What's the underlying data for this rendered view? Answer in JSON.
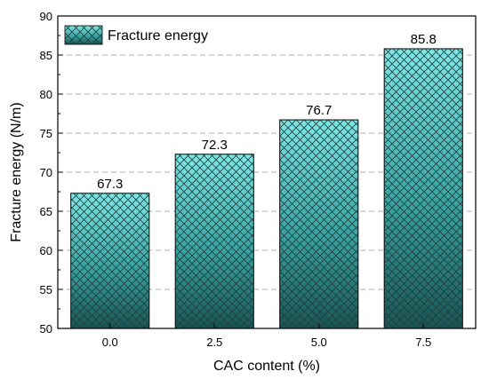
{
  "chart_data": {
    "type": "bar",
    "categories": [
      "0.0",
      "2.5",
      "5.0",
      "7.5"
    ],
    "series": [
      {
        "name": "Fracture energy",
        "values": [
          67.3,
          72.3,
          76.7,
          85.8
        ]
      }
    ],
    "data_labels": [
      "67.3",
      "72.3",
      "76.7",
      "85.8"
    ],
    "xlabel": "CAC content (%)",
    "ylabel": "Fracture energy (N/m)",
    "ylim": [
      50,
      90
    ],
    "yticks": [
      "50",
      "55",
      "60",
      "65",
      "70",
      "75",
      "80",
      "85",
      "90"
    ],
    "grid": "horizontal dashed",
    "legend": "top-left",
    "bar_fill_colors": {
      "top": "#7fe6e6",
      "bottom": "#1b5453"
    },
    "bar_hatch_color": "#1a3f3e"
  }
}
